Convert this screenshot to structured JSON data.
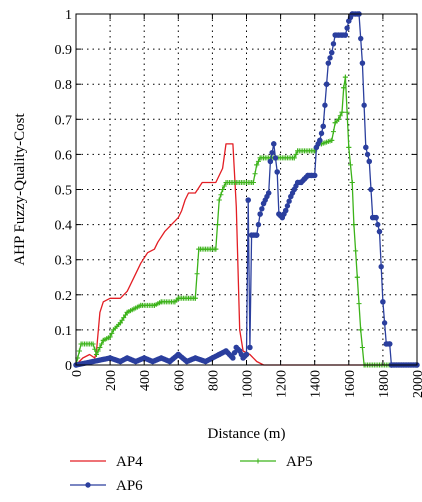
{
  "chart_data": {
    "type": "line",
    "title": "",
    "xlabel": "Distance (m)",
    "ylabel": "AHP Fuzzy-Quality-Cost",
    "xlim": [
      0,
      2000
    ],
    "ylim": [
      0,
      1
    ],
    "xticks": [
      0,
      200,
      400,
      600,
      800,
      1000,
      1200,
      1400,
      1600,
      1800,
      2000
    ],
    "yticks": [
      0,
      0.1,
      0.2,
      0.3,
      0.4,
      0.5,
      0.6,
      0.7,
      0.8,
      0.9,
      1
    ],
    "grid": "dotted",
    "legend_position": "bottom",
    "series": [
      {
        "name": "AP4",
        "color": "#e31e24",
        "marker": "none",
        "points": [
          [
            0,
            0
          ],
          [
            40,
            0.02
          ],
          [
            80,
            0.03
          ],
          [
            110,
            0.02
          ],
          [
            120,
            0.04
          ],
          [
            140,
            0.15
          ],
          [
            160,
            0.18
          ],
          [
            200,
            0.19
          ],
          [
            260,
            0.19
          ],
          [
            300,
            0.21
          ],
          [
            340,
            0.25
          ],
          [
            380,
            0.29
          ],
          [
            420,
            0.32
          ],
          [
            460,
            0.33
          ],
          [
            480,
            0.35
          ],
          [
            520,
            0.38
          ],
          [
            560,
            0.4
          ],
          [
            600,
            0.42
          ],
          [
            620,
            0.44
          ],
          [
            640,
            0.47
          ],
          [
            660,
            0.49
          ],
          [
            700,
            0.49
          ],
          [
            740,
            0.52
          ],
          [
            780,
            0.52
          ],
          [
            820,
            0.52
          ],
          [
            860,
            0.56
          ],
          [
            880,
            0.63
          ],
          [
            920,
            0.63
          ],
          [
            940,
            0.45
          ],
          [
            960,
            0.1
          ],
          [
            980,
            0.04
          ],
          [
            1020,
            0.03
          ],
          [
            1060,
            0.01
          ],
          [
            1100,
            0
          ],
          [
            2000,
            0
          ]
        ]
      },
      {
        "name": "AP5",
        "color": "#3cb31a",
        "marker": "plus",
        "points": [
          [
            0,
            0
          ],
          [
            20,
            0.04
          ],
          [
            30,
            0.06
          ],
          [
            100,
            0.06
          ],
          [
            120,
            0.03
          ],
          [
            160,
            0.07
          ],
          [
            200,
            0.08
          ],
          [
            220,
            0.1
          ],
          [
            260,
            0.12
          ],
          [
            300,
            0.15
          ],
          [
            340,
            0.16
          ],
          [
            380,
            0.17
          ],
          [
            460,
            0.17
          ],
          [
            500,
            0.18
          ],
          [
            580,
            0.18
          ],
          [
            600,
            0.19
          ],
          [
            700,
            0.19
          ],
          [
            720,
            0.33
          ],
          [
            820,
            0.33
          ],
          [
            830,
            0.4
          ],
          [
            840,
            0.47
          ],
          [
            860,
            0.5
          ],
          [
            880,
            0.52
          ],
          [
            1040,
            0.52
          ],
          [
            1060,
            0.57
          ],
          [
            1080,
            0.59
          ],
          [
            1100,
            0.59
          ],
          [
            1280,
            0.59
          ],
          [
            1300,
            0.61
          ],
          [
            1400,
            0.61
          ],
          [
            1420,
            0.63
          ],
          [
            1440,
            0.63
          ],
          [
            1500,
            0.64
          ],
          [
            1520,
            0.69
          ],
          [
            1540,
            0.7
          ],
          [
            1560,
            0.72
          ],
          [
            1570,
            0.79
          ],
          [
            1580,
            0.82
          ],
          [
            1600,
            0.62
          ],
          [
            1620,
            0.52
          ],
          [
            1630,
            0.4
          ],
          [
            1650,
            0.25
          ],
          [
            1670,
            0.1
          ],
          [
            1690,
            0
          ],
          [
            2000,
            0
          ]
        ]
      },
      {
        "name": "AP6",
        "color": "#2b3f9e",
        "marker": "circle",
        "points": [
          [
            0,
            0
          ],
          [
            200,
            0.02
          ],
          [
            260,
            0.01
          ],
          [
            300,
            0.02
          ],
          [
            350,
            0.01
          ],
          [
            400,
            0.02
          ],
          [
            450,
            0.01
          ],
          [
            500,
            0.02
          ],
          [
            550,
            0.01
          ],
          [
            600,
            0.03
          ],
          [
            650,
            0.01
          ],
          [
            700,
            0.02
          ],
          [
            760,
            0.01
          ],
          [
            800,
            0.02
          ],
          [
            840,
            0.03
          ],
          [
            880,
            0.04
          ],
          [
            920,
            0.02
          ],
          [
            940,
            0.05
          ],
          [
            960,
            0.04
          ],
          [
            980,
            0.02
          ],
          [
            1000,
            0.03
          ],
          [
            1010,
            0.47
          ],
          [
            1020,
            0.05
          ],
          [
            1030,
            0.37
          ],
          [
            1060,
            0.37
          ],
          [
            1080,
            0.43
          ],
          [
            1100,
            0.46
          ],
          [
            1130,
            0.49
          ],
          [
            1140,
            0.58
          ],
          [
            1160,
            0.63
          ],
          [
            1180,
            0.55
          ],
          [
            1190,
            0.43
          ],
          [
            1210,
            0.42
          ],
          [
            1230,
            0.44
          ],
          [
            1260,
            0.48
          ],
          [
            1280,
            0.5
          ],
          [
            1300,
            0.52
          ],
          [
            1320,
            0.52
          ],
          [
            1340,
            0.53
          ],
          [
            1360,
            0.54
          ],
          [
            1380,
            0.54
          ],
          [
            1400,
            0.54
          ],
          [
            1410,
            0.62
          ],
          [
            1430,
            0.64
          ],
          [
            1450,
            0.68
          ],
          [
            1470,
            0.8
          ],
          [
            1480,
            0.86
          ],
          [
            1500,
            0.89
          ],
          [
            1520,
            0.94
          ],
          [
            1540,
            0.94
          ],
          [
            1560,
            0.94
          ],
          [
            1580,
            0.94
          ],
          [
            1600,
            0.98
          ],
          [
            1620,
            1.0
          ],
          [
            1660,
            1.0
          ],
          [
            1680,
            0.86
          ],
          [
            1700,
            0.62
          ],
          [
            1720,
            0.58
          ],
          [
            1740,
            0.42
          ],
          [
            1760,
            0.42
          ],
          [
            1780,
            0.38
          ],
          [
            1800,
            0.18
          ],
          [
            1820,
            0.06
          ],
          [
            1840,
            0.06
          ],
          [
            1850,
            0
          ],
          [
            2000,
            0
          ]
        ]
      }
    ]
  }
}
